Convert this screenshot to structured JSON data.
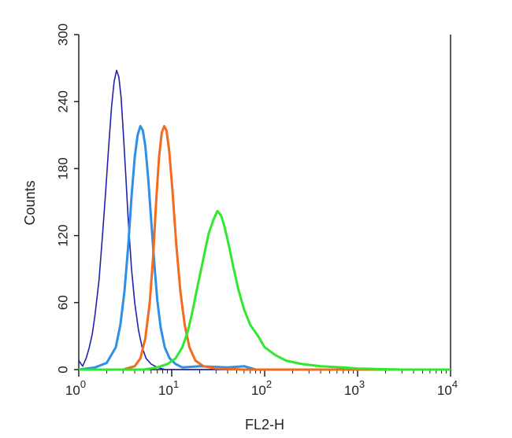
{
  "chart_data": {
    "type": "line",
    "title": "",
    "xlabel": "FL2-H",
    "ylabel": "Counts",
    "x_scale": "log",
    "xlim": [
      1,
      10000
    ],
    "ylim": [
      0,
      300
    ],
    "x_ticks": [
      {
        "value": 1,
        "base": "10",
        "exp": "0"
      },
      {
        "value": 10,
        "base": "10",
        "exp": "1"
      },
      {
        "value": 100,
        "base": "10",
        "exp": "2"
      },
      {
        "value": 1000,
        "base": "10",
        "exp": "3"
      },
      {
        "value": 10000,
        "base": "10",
        "exp": "4"
      }
    ],
    "y_ticks": [
      "0",
      "60",
      "120",
      "180",
      "240",
      "300"
    ],
    "grid": false,
    "legend": "none",
    "series": [
      {
        "color": "#2222aa",
        "points": [
          [
            1.0,
            8
          ],
          [
            1.1,
            3
          ],
          [
            1.2,
            10
          ],
          [
            1.3,
            20
          ],
          [
            1.4,
            32
          ],
          [
            1.5,
            50
          ],
          [
            1.65,
            80
          ],
          [
            1.8,
            120
          ],
          [
            1.95,
            160
          ],
          [
            2.1,
            200
          ],
          [
            2.25,
            235
          ],
          [
            2.4,
            258
          ],
          [
            2.55,
            268
          ],
          [
            2.7,
            262
          ],
          [
            2.85,
            244
          ],
          [
            3.0,
            215
          ],
          [
            3.2,
            175
          ],
          [
            3.4,
            135
          ],
          [
            3.7,
            90
          ],
          [
            4.0,
            60
          ],
          [
            4.4,
            35
          ],
          [
            4.8,
            20
          ],
          [
            5.3,
            10
          ],
          [
            6.0,
            5
          ],
          [
            7.0,
            2
          ],
          [
            8.5,
            0
          ],
          [
            10000,
            0
          ]
        ]
      },
      {
        "color": "#2f8fe8",
        "points": [
          [
            1.0,
            0
          ],
          [
            1.5,
            2
          ],
          [
            2.0,
            6
          ],
          [
            2.5,
            20
          ],
          [
            2.8,
            40
          ],
          [
            3.1,
            70
          ],
          [
            3.4,
            110
          ],
          [
            3.7,
            155
          ],
          [
            4.0,
            190
          ],
          [
            4.3,
            210
          ],
          [
            4.6,
            218
          ],
          [
            4.9,
            214
          ],
          [
            5.2,
            200
          ],
          [
            5.6,
            170
          ],
          [
            6.0,
            135
          ],
          [
            6.5,
            95
          ],
          [
            7.0,
            62
          ],
          [
            7.6,
            38
          ],
          [
            8.4,
            20
          ],
          [
            9.5,
            10
          ],
          [
            11,
            5
          ],
          [
            13,
            2
          ],
          [
            20,
            3
          ],
          [
            40,
            2
          ],
          [
            60,
            3
          ],
          [
            80,
            0
          ],
          [
            10000,
            0
          ]
        ]
      },
      {
        "color": "#f46a1e",
        "points": [
          [
            1.0,
            0
          ],
          [
            3.0,
            0
          ],
          [
            4.0,
            3
          ],
          [
            4.6,
            10
          ],
          [
            5.2,
            28
          ],
          [
            5.8,
            60
          ],
          [
            6.3,
            100
          ],
          [
            6.8,
            150
          ],
          [
            7.3,
            190
          ],
          [
            7.8,
            212
          ],
          [
            8.3,
            218
          ],
          [
            8.8,
            214
          ],
          [
            9.4,
            196
          ],
          [
            10.2,
            160
          ],
          [
            11.2,
            112
          ],
          [
            12.4,
            70
          ],
          [
            13.8,
            40
          ],
          [
            15.5,
            20
          ],
          [
            18,
            8
          ],
          [
            22,
            3
          ],
          [
            30,
            1
          ],
          [
            60,
            0
          ],
          [
            10000,
            0
          ]
        ]
      },
      {
        "color": "#2fe82f",
        "points": [
          [
            1.0,
            0
          ],
          [
            5.0,
            0
          ],
          [
            7.0,
            2
          ],
          [
            9.0,
            5
          ],
          [
            11,
            10
          ],
          [
            13,
            20
          ],
          [
            15,
            35
          ],
          [
            17,
            55
          ],
          [
            19,
            75
          ],
          [
            21,
            92
          ],
          [
            23,
            108
          ],
          [
            25,
            122
          ],
          [
            28,
            134
          ],
          [
            31,
            142
          ],
          [
            34,
            138
          ],
          [
            37,
            128
          ],
          [
            41,
            112
          ],
          [
            46,
            92
          ],
          [
            52,
            72
          ],
          [
            60,
            54
          ],
          [
            70,
            40
          ],
          [
            85,
            30
          ],
          [
            100,
            20
          ],
          [
            130,
            13
          ],
          [
            170,
            8
          ],
          [
            250,
            5
          ],
          [
            400,
            3
          ],
          [
            700,
            2
          ],
          [
            1000,
            1
          ],
          [
            3000,
            0
          ],
          [
            10000,
            0
          ]
        ]
      }
    ]
  }
}
